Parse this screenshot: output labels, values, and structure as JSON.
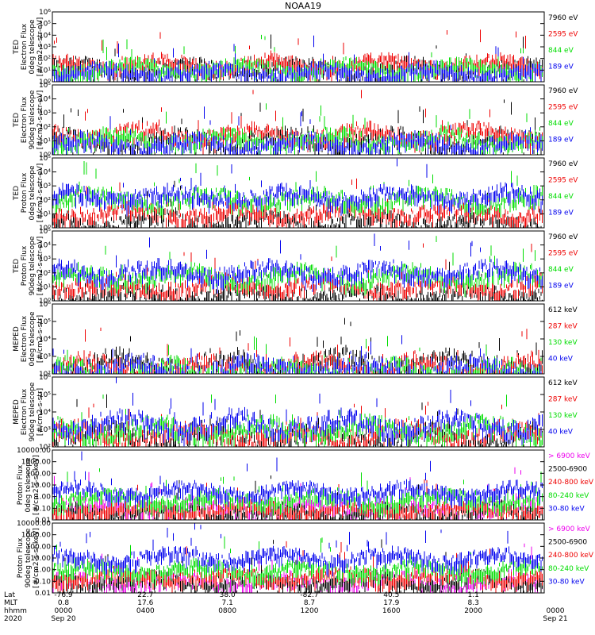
{
  "title": "NOAA19",
  "colors": {
    "black": "#000000",
    "red": "#ee0000",
    "green": "#00dd00",
    "blue": "#0000ee",
    "magenta": "#ee00ee"
  },
  "chart_data": [
    {
      "type": "line",
      "ylabel": [
        "TED",
        "Electron Flux",
        "0deg telescope",
        "[#/cm2-s-str-eV]"
      ],
      "log": true,
      "ylim": [
        1,
        1000000
      ],
      "ytick_labels": [
        "10⁰",
        "10¹",
        "10²",
        "10³",
        "10⁴",
        "10⁵",
        "10⁶"
      ],
      "series": [
        {
          "name": "7960 eV",
          "color": "black",
          "level": 30
        },
        {
          "name": "2595 eV",
          "color": "red",
          "level": 60
        },
        {
          "name": "844 eV",
          "color": "green",
          "level": 25
        },
        {
          "name": "189 eV",
          "color": "blue",
          "level": 12
        }
      ]
    },
    {
      "type": "line",
      "ylabel": [
        "TED",
        "Electron Flux",
        "90deg telescope",
        "[#/cm2-s-str-eV]"
      ],
      "log": true,
      "ylim": [
        1,
        100000
      ],
      "ytick_labels": [
        "10⁰",
        "10¹",
        "10²",
        "10³",
        "10⁴",
        "10⁵"
      ],
      "series": [
        {
          "name": "7960 eV",
          "color": "black",
          "level": 20
        },
        {
          "name": "2595 eV",
          "color": "red",
          "level": 50
        },
        {
          "name": "844 eV",
          "color": "green",
          "level": 20
        },
        {
          "name": "189 eV",
          "color": "blue",
          "level": 10
        }
      ]
    },
    {
      "type": "line",
      "ylabel": [
        "TED",
        "Proton Flux",
        "0deg telescope",
        "[#/cm2-s-str-eV]"
      ],
      "log": true,
      "ylim": [
        1,
        100000
      ],
      "ytick_labels": [
        "10⁰",
        "10¹",
        "10²",
        "10³",
        "10⁴",
        "10⁵"
      ],
      "series": [
        {
          "name": "7960 eV",
          "color": "black",
          "level": 5
        },
        {
          "name": "2595 eV",
          "color": "red",
          "level": 20
        },
        {
          "name": "844 eV",
          "color": "green",
          "level": 200
        },
        {
          "name": "189 eV",
          "color": "blue",
          "level": 300
        }
      ]
    },
    {
      "type": "line",
      "ylabel": [
        "TED",
        "Proton Flux",
        "90deg telescope",
        "[#/cm2-s-str-eV]"
      ],
      "log": true,
      "ylim": [
        1,
        100000
      ],
      "ytick_labels": [
        "10⁰",
        "10¹",
        "10²",
        "10³",
        "10⁴",
        "10⁵"
      ],
      "series": [
        {
          "name": "7960 eV",
          "color": "black",
          "level": 5
        },
        {
          "name": "2595 eV",
          "color": "red",
          "level": 20
        },
        {
          "name": "844 eV",
          "color": "green",
          "level": 100
        },
        {
          "name": "189 eV",
          "color": "blue",
          "level": 200
        }
      ]
    },
    {
      "type": "line",
      "ylabel": [
        "MEPED",
        "Electron Flux",
        "0deg telescope",
        "[#/cm2-s-str]"
      ],
      "log": true,
      "ylim": [
        100,
        1000000
      ],
      "ytick_labels": [
        "10²",
        "10³",
        "10⁴",
        "10⁵",
        "10⁶"
      ],
      "series": [
        {
          "name": "612 keV",
          "color": "black",
          "level": 600
        },
        {
          "name": "287 keV",
          "color": "red",
          "level": 400
        },
        {
          "name": "130 keV",
          "color": "green",
          "level": 200
        },
        {
          "name": "40 keV",
          "color": "blue",
          "level": 300
        }
      ]
    },
    {
      "type": "line",
      "ylabel": [
        "MEPED",
        "Electron Flux",
        "90deg telescope",
        "[#/cm2-s-str]"
      ],
      "log": true,
      "ylim": [
        100,
        1000000
      ],
      "ytick_labels": [
        "10²",
        "10³",
        "10⁴",
        "10⁵",
        "10⁶"
      ],
      "series": [
        {
          "name": "612 keV",
          "color": "black",
          "level": 800
        },
        {
          "name": "287 keV",
          "color": "red",
          "level": 800
        },
        {
          "name": "130 keV",
          "color": "green",
          "level": 1500
        },
        {
          "name": "40 keV",
          "color": "blue",
          "level": 3000
        }
      ]
    },
    {
      "type": "line",
      "ylabel": [
        "Proton Flux",
        "0deg telescope",
        "[#/cm2-s-sr-keV]"
      ],
      "log": true,
      "ylim": [
        0.01,
        10000
      ],
      "ytick_labels": [
        "0.01",
        "0.10",
        "1.00",
        "10.00",
        "100.00",
        "1000.00",
        "10000.00"
      ],
      "series": [
        {
          "name": "> 6900 keV",
          "color": "magenta",
          "level": 0.2
        },
        {
          "name": "2500-6900",
          "color": "black",
          "level": 0.1
        },
        {
          "name": "240-800 keV",
          "color": "red",
          "level": 0.15
        },
        {
          "name": "80-240 keV",
          "color": "green",
          "level": 1.2
        },
        {
          "name": "30-80 keV",
          "color": "blue",
          "level": 5
        }
      ]
    },
    {
      "type": "line",
      "ylabel": [
        "Proton Flux",
        "90deg telescope",
        "[#/cm2-s-sr-keV]"
      ],
      "log": true,
      "ylim": [
        0.01,
        10000
      ],
      "ytick_labels": [
        "0.01",
        "0.10",
        "1.00",
        "10.00",
        "100.00",
        "1000.00",
        "10000.00"
      ],
      "series": [
        {
          "name": "> 6900 keV",
          "color": "magenta",
          "level": 0.2
        },
        {
          "name": "2500-6900",
          "color": "black",
          "level": 0.2
        },
        {
          "name": "240-800 keV",
          "color": "red",
          "level": 0.5
        },
        {
          "name": "80-240 keV",
          "color": "green",
          "level": 2
        },
        {
          "name": "30-80 keV",
          "color": "blue",
          "level": 20
        }
      ]
    }
  ],
  "xaxis": {
    "row_labels": [
      "Lat",
      "MLT",
      "hhmm",
      "2020"
    ],
    "columns": [
      {
        "values": [
          "-76.9",
          "0.8",
          "0000",
          "Sep 20"
        ]
      },
      {
        "values": [
          "22.7",
          "17.6",
          "0400",
          ""
        ]
      },
      {
        "values": [
          "38.0",
          "7.1",
          "0800",
          ""
        ]
      },
      {
        "values": [
          "-82.7",
          "8.7",
          "1200",
          ""
        ]
      },
      {
        "values": [
          "40.5",
          "17.9",
          "1600",
          ""
        ]
      },
      {
        "values": [
          "1.1",
          "8.3",
          "2000",
          ""
        ]
      },
      {
        "values": [
          "",
          "",
          "0000",
          "Sep 21"
        ]
      }
    ]
  }
}
